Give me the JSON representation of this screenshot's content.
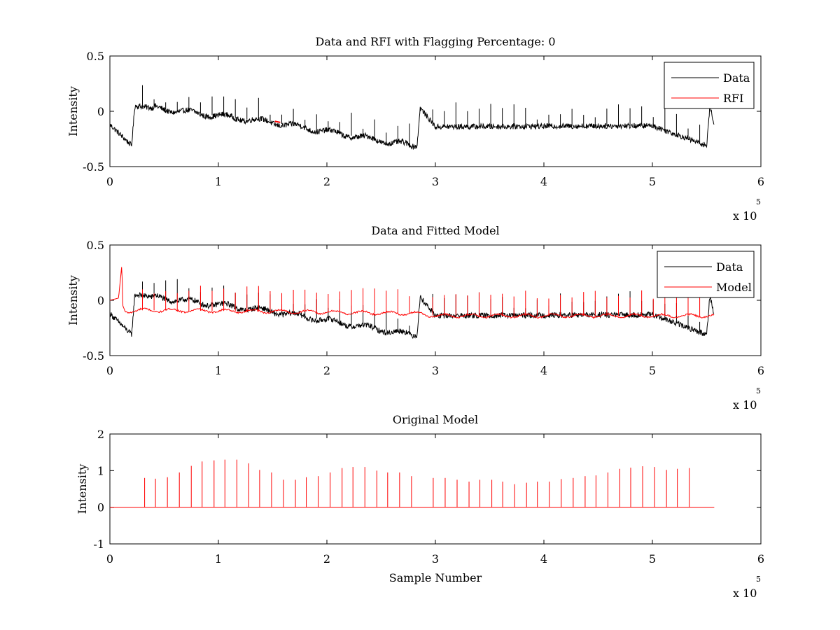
{
  "chart_data": [
    {
      "type": "line",
      "title": "Data and RFI with Flagging Percentage: 0",
      "xlabel": "",
      "ylabel": "Intensity",
      "xlim": [
        0,
        600000
      ],
      "ylim": [
        -0.5,
        0.5
      ],
      "xticks": [
        0,
        100000,
        200000,
        300000,
        400000,
        500000,
        600000
      ],
      "xtick_labels": [
        "0",
        "1",
        "2",
        "3",
        "4",
        "5",
        "6"
      ],
      "yticks": [
        -0.5,
        0,
        0.5
      ],
      "ytick_labels": [
        "-0.5",
        "0",
        "0.5"
      ],
      "x_multiplier": {
        "base": "x 10",
        "exponent": "5"
      },
      "legend": {
        "position": "top-right",
        "entries": [
          "Data",
          "RFI"
        ]
      },
      "grid": false,
      "series": [
        {
          "name": "Data",
          "color": "#000000",
          "kind": "data_trace",
          "baseline": -0.12,
          "spike_tops": 0.1,
          "x": [
            0,
            20000,
            23000,
            150000,
            283000,
            286000,
            300000,
            500000,
            550000,
            553000,
            557000
          ],
          "y": [
            -0.12,
            -0.31,
            0.05,
            -0.1,
            -0.32,
            0.03,
            -0.14,
            -0.13,
            -0.31,
            0.05,
            -0.14
          ]
        },
        {
          "name": "RFI",
          "color": "#ff0000",
          "kind": "short_segment",
          "x": [
            152000,
            157000
          ],
          "y": [
            -0.09,
            -0.1
          ]
        }
      ]
    },
    {
      "type": "line",
      "title": "Data and Fitted Model",
      "xlabel": "",
      "ylabel": "Intensity",
      "xlim": [
        0,
        600000
      ],
      "ylim": [
        -0.5,
        0.5
      ],
      "xticks": [
        0,
        100000,
        200000,
        300000,
        400000,
        500000,
        600000
      ],
      "xtick_labels": [
        "0",
        "1",
        "2",
        "3",
        "4",
        "5",
        "6"
      ],
      "yticks": [
        -0.5,
        0,
        0.5
      ],
      "ytick_labels": [
        "-0.5",
        "0",
        "0.5"
      ],
      "x_multiplier": {
        "base": "x 10",
        "exponent": "5"
      },
      "legend": {
        "position": "top-right",
        "entries": [
          "Data",
          "Model"
        ]
      },
      "grid": false,
      "series": [
        {
          "name": "Data",
          "color": "#000000",
          "kind": "data_trace",
          "baseline": -0.12,
          "spike_tops": 0.1,
          "x": [
            0,
            20000,
            23000,
            150000,
            283000,
            286000,
            300000,
            500000,
            550000,
            553000,
            557000
          ],
          "y": [
            -0.12,
            -0.31,
            0.05,
            -0.1,
            -0.32,
            0.03,
            -0.14,
            -0.13,
            -0.31,
            0.05,
            -0.14
          ]
        },
        {
          "name": "Model",
          "color": "#ff0000",
          "kind": "model_trace",
          "x": [
            0,
            8000,
            11000,
            12000,
            14000,
            28000,
            150000,
            285000,
            300000,
            557000
          ],
          "y": [
            0.0,
            0.02,
            0.32,
            -0.05,
            -0.1,
            -0.09,
            -0.1,
            -0.12,
            -0.14,
            -0.14
          ]
        }
      ]
    },
    {
      "type": "line",
      "title": "Original Model",
      "xlabel": "Sample Number",
      "ylabel": "Intensity",
      "xlim": [
        0,
        600000
      ],
      "ylim": [
        -1,
        2
      ],
      "xticks": [
        0,
        100000,
        200000,
        300000,
        400000,
        500000,
        600000
      ],
      "xtick_labels": [
        "0",
        "1",
        "2",
        "3",
        "4",
        "5",
        "6"
      ],
      "yticks": [
        -1,
        0,
        1,
        2
      ],
      "ytick_labels": [
        "-1",
        "0",
        "1",
        "2"
      ],
      "x_multiplier": {
        "base": "x 10",
        "exponent": "5"
      },
      "legend": null,
      "grid": false,
      "series": [
        {
          "name": "",
          "color": "#ff0000",
          "kind": "spikes",
          "x_end": 557000,
          "spike_x": [
            32000,
            42000,
            53000,
            64000,
            75000,
            85000,
            96000,
            106000,
            117000,
            128000,
            138000,
            149000,
            160000,
            171000,
            181000,
            192000,
            203000,
            214000,
            224000,
            235000,
            246000,
            256000,
            267000,
            278000,
            298000,
            309000,
            320000,
            331000,
            341000,
            352000,
            362000,
            373000,
            384000,
            394000,
            405000,
            416000,
            427000,
            438000,
            448000,
            459000,
            470000,
            480000,
            491000,
            502000,
            513000,
            523000,
            534000
          ],
          "spike_y": [
            0.8,
            0.78,
            0.82,
            0.95,
            1.13,
            1.25,
            1.28,
            1.3,
            1.3,
            1.2,
            1.02,
            0.95,
            0.75,
            0.75,
            0.82,
            0.85,
            0.95,
            1.07,
            1.1,
            1.1,
            1.0,
            0.95,
            0.95,
            0.85,
            0.8,
            0.8,
            0.75,
            0.7,
            0.75,
            0.75,
            0.7,
            0.63,
            0.67,
            0.7,
            0.7,
            0.77,
            0.8,
            0.85,
            0.87,
            0.95,
            1.05,
            1.08,
            1.12,
            1.1,
            1.02,
            1.05,
            1.07
          ]
        }
      ]
    }
  ]
}
